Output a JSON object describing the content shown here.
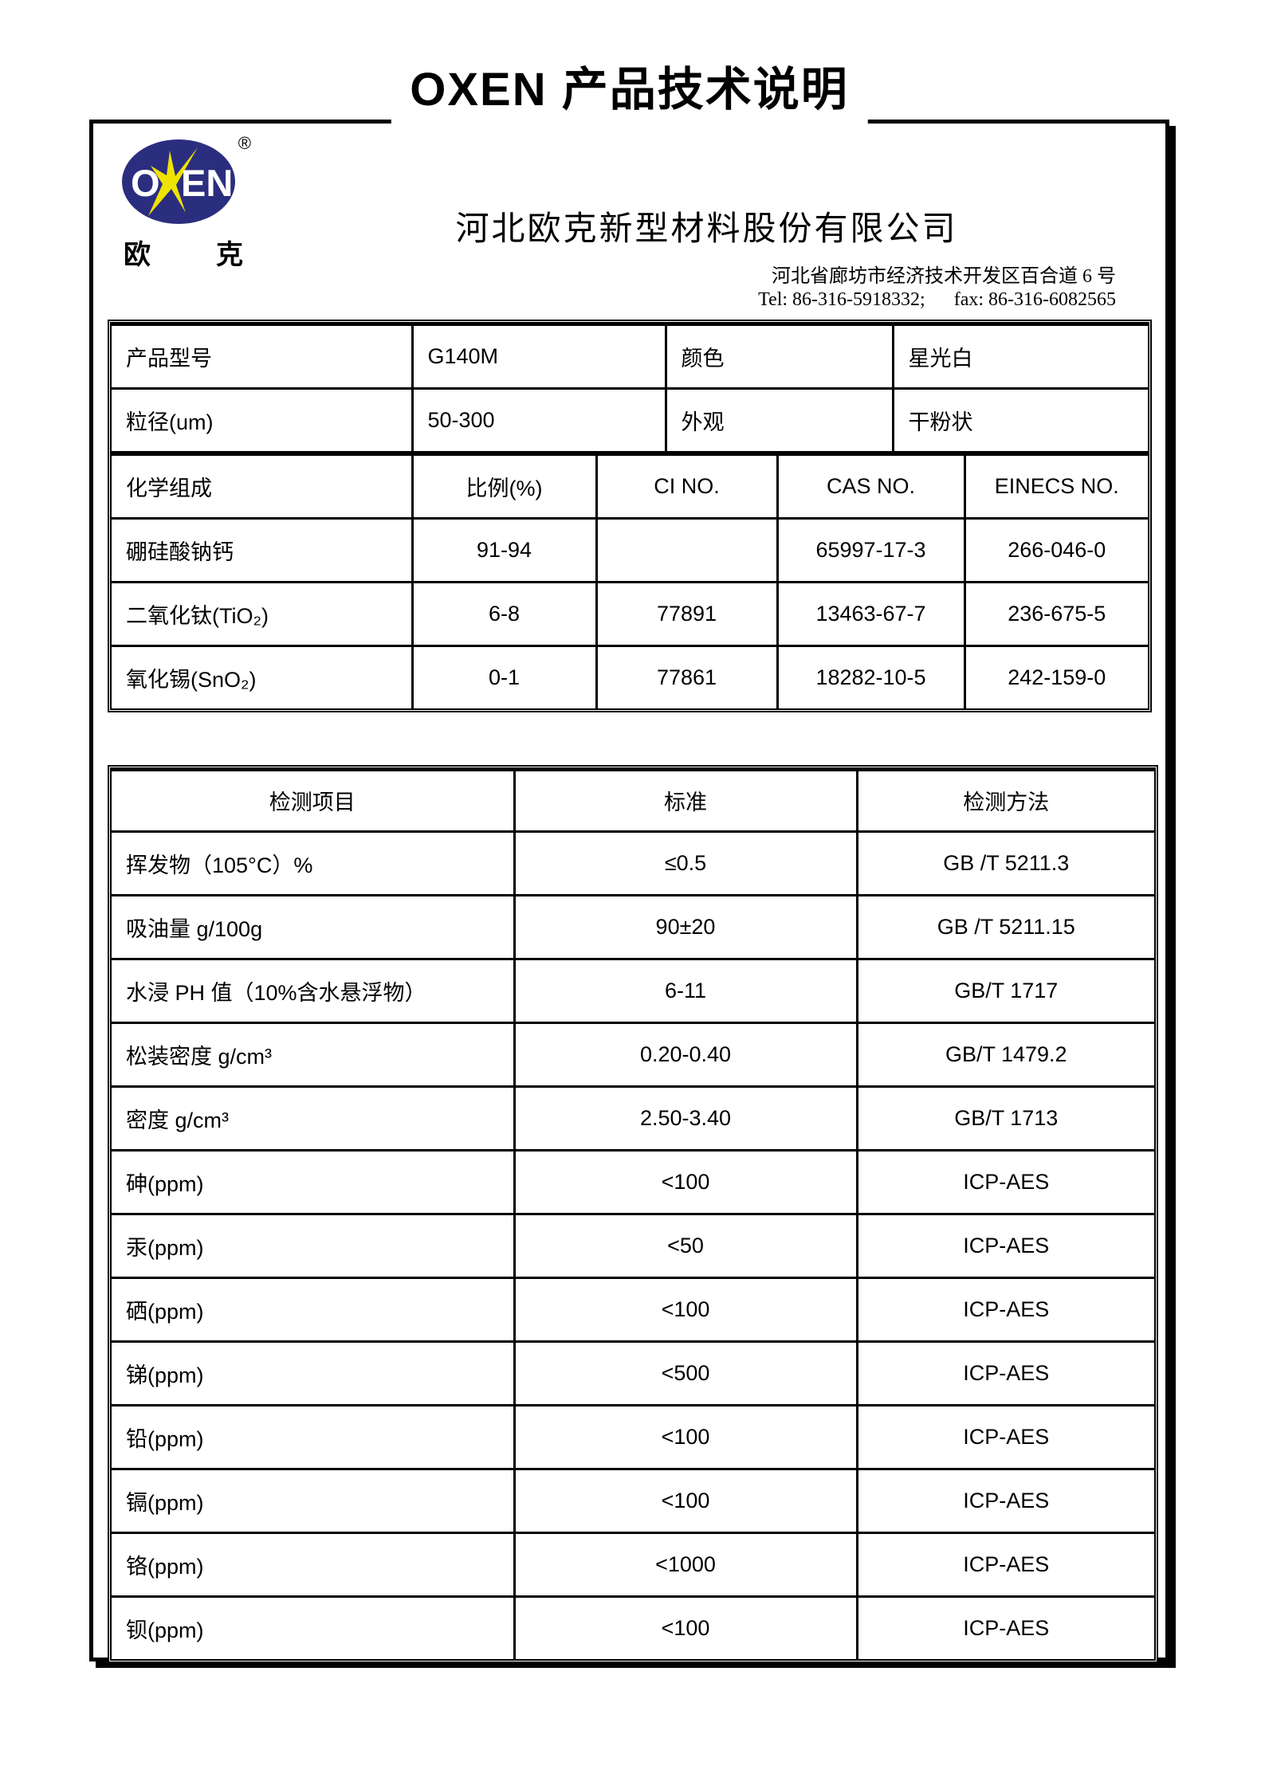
{
  "title": "OXEN 产品技术说明",
  "logo": {
    "brand_o": "O",
    "brand_en": "EN",
    "registered": "®",
    "subtext_left": "欧",
    "subtext_right": "克",
    "ellipse_color": "#2b2e7f",
    "star_color": "#efe300"
  },
  "company": {
    "name": "河北欧克新型材料股份有限公司",
    "address": "河北省廊坊市经济技术开发区百合道 6 号",
    "contact": "Tel: 86-316-5918332;      fax: 86-316-6082565"
  },
  "product_table": {
    "info_rows": [
      [
        "产品型号",
        "G140M",
        "颜色",
        "星光白"
      ],
      [
        "粒径(um)",
        "50-300",
        "外观",
        "干粉状"
      ]
    ],
    "composition_header": [
      "化学组成",
      "比例(%)",
      "CI NO.",
      "CAS NO.",
      "EINECS NO."
    ],
    "composition_rows": [
      [
        "硼硅酸钠钙",
        "91-94",
        "",
        "65997-17-3",
        "266-046-0"
      ],
      [
        "二氧化钛(TiO₂)",
        "6-8",
        "77891",
        "13463-67-7",
        "236-675-5"
      ],
      [
        "氧化锡(SnO₂)",
        "0-1",
        "77861",
        "18282-10-5",
        "242-159-0"
      ]
    ]
  },
  "test_table": {
    "header": [
      "检测项目",
      "标准",
      "检测方法"
    ],
    "rows": [
      [
        "挥发物（105°C）%",
        "≤0.5",
        "GB /T 5211.3"
      ],
      [
        "吸油量 g/100g",
        "90±20",
        "GB /T 5211.15"
      ],
      [
        "水浸 PH 值（10%含水悬浮物）",
        "6-11",
        "GB/T 1717"
      ],
      [
        "松装密度 g/cm³",
        "0.20-0.40",
        "GB/T 1479.2"
      ],
      [
        "密度 g/cm³",
        "2.50-3.40",
        "GB/T 1713"
      ],
      [
        "砷(ppm)",
        "<100",
        "ICP-AES"
      ],
      [
        "汞(ppm)",
        "<50",
        "ICP-AES"
      ],
      [
        "硒(ppm)",
        "<100",
        "ICP-AES"
      ],
      [
        "锑(ppm)",
        "<500",
        "ICP-AES"
      ],
      [
        "铅(ppm)",
        "<100",
        "ICP-AES"
      ],
      [
        "镉(ppm)",
        "<100",
        "ICP-AES"
      ],
      [
        "铬(ppm)",
        "<1000",
        "ICP-AES"
      ],
      [
        "钡(ppm)",
        "<100",
        "ICP-AES"
      ]
    ]
  }
}
